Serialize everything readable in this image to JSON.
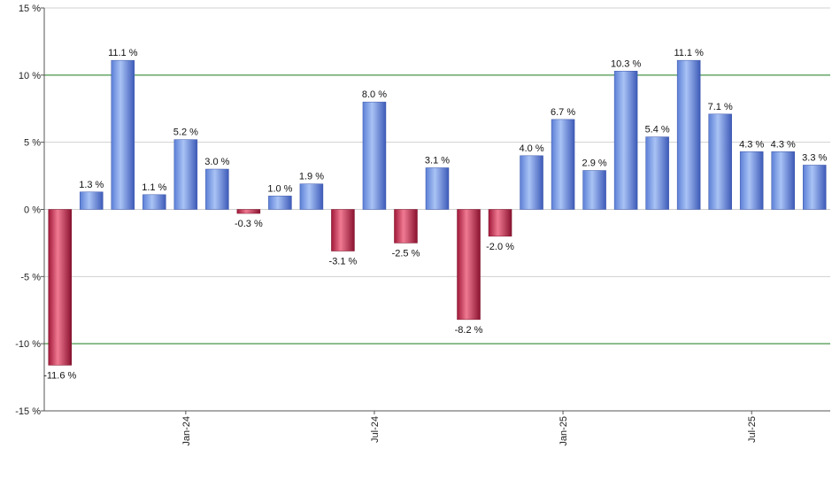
{
  "chart_data": {
    "type": "bar",
    "title": "",
    "xlabel": "",
    "ylabel": "",
    "ylim": [
      -15,
      15
    ],
    "y_ticks": [
      15,
      10,
      5,
      0,
      -5,
      -10,
      -15
    ],
    "y_tick_labels": [
      "15 %",
      "10 %",
      "5 %",
      "0 %",
      "-5 %",
      "-10 %",
      "-15 %"
    ],
    "x_ticks": [
      {
        "label": "Jan-24",
        "index": 4
      },
      {
        "label": "Jul-24",
        "index": 10
      },
      {
        "label": "Jan-25",
        "index": 16
      },
      {
        "label": "Jul-25",
        "index": 22
      }
    ],
    "values": [
      -11.6,
      1.3,
      11.1,
      1.1,
      5.2,
      3.0,
      -0.3,
      1.0,
      1.9,
      -3.1,
      8.0,
      -2.5,
      3.1,
      -8.2,
      -2.0,
      4.0,
      6.7,
      2.9,
      10.3,
      5.4,
      11.1,
      7.1,
      4.3,
      4.3,
      3.3
    ],
    "value_labels": [
      "-11.6 %",
      "1.3 %",
      "11.1 %",
      "1.1 %",
      "5.2 %",
      "3.0 %",
      "-0.3 %",
      "1.0 %",
      "1.9 %",
      "-3.1 %",
      "8.0 %",
      "-2.5 %",
      "3.1 %",
      "-8.2 %",
      "-2.0 %",
      "4.0 %",
      "6.7 %",
      "2.9 %",
      "10.3 %",
      "5.4 %",
      "11.1 %",
      "7.1 %",
      "4.3 %",
      "4.3 %",
      "3.3 %"
    ],
    "grid": true,
    "highlight_gridlines": [
      10,
      -10
    ],
    "colors": {
      "positive": "#7a9ee8",
      "negative": "#c8304e",
      "gridline": "#d0d0d0",
      "highlight_gridline": "#1a7a1a",
      "axis": "#555555"
    }
  }
}
